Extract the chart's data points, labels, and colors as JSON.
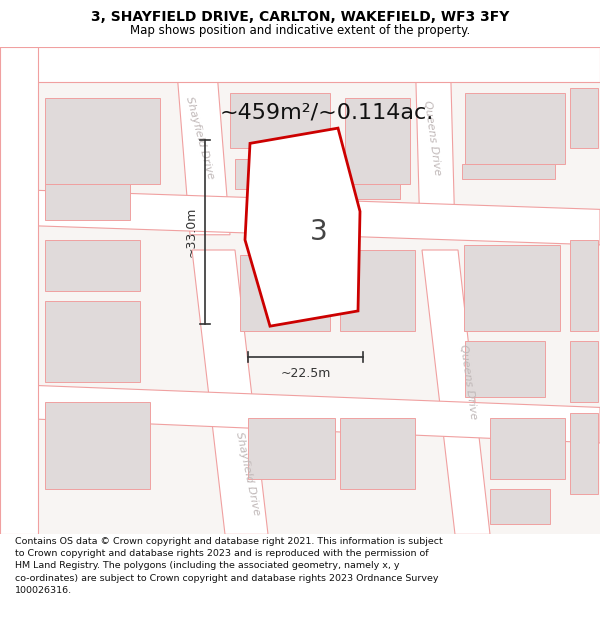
{
  "title_line1": "3, SHAYFIELD DRIVE, CARLTON, WAKEFIELD, WF3 3FY",
  "title_line2": "Map shows position and indicative extent of the property.",
  "footer_text": "Contains OS data © Crown copyright and database right 2021. This information is subject\nto Crown copyright and database rights 2023 and is reproduced with the permission of\nHM Land Registry. The polygons (including the associated geometry, namely x, y\nco-ordinates) are subject to Crown copyright and database rights 2023 Ordnance Survey\n100026316.",
  "area_label": "~459m²/~0.114ac.",
  "plot_number": "3",
  "dim_width": "~22.5m",
  "dim_height": "~33.0m",
  "street_label_shayfield1": "Shayfield Drive",
  "street_label_shayfield2": "Shayfield Drive",
  "street_label_queens1": "Queens Drive",
  "street_label_queens2": "Queens Drive",
  "map_bg": "#f8f5f3",
  "road_color": "#ffffff",
  "road_outline": "#f0a0a0",
  "building_fill": "#e0dada",
  "building_outline": "#f0a0a0",
  "plot_outline_color": "#cc0000",
  "plot_fill": "#ffffff",
  "dim_line_color": "#333333",
  "street_text_color": "#c0b8b8",
  "title_color": "#000000",
  "footer_color": "#111111",
  "title_fontsize": 10,
  "subtitle_fontsize": 8.5,
  "area_fontsize": 16,
  "plot_num_fontsize": 20,
  "dim_fontsize": 9,
  "street_fontsize": 8
}
